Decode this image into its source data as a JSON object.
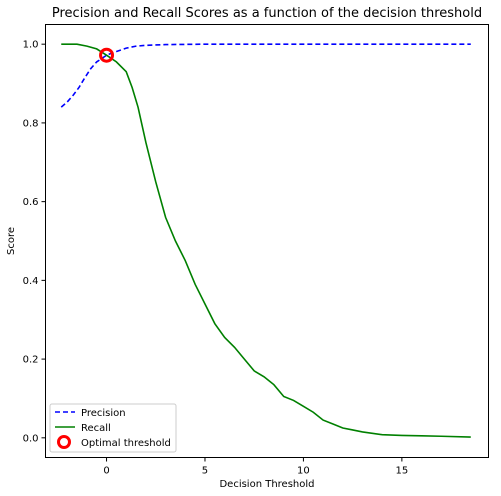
{
  "chart_data": {
    "type": "line",
    "title": "Precision and Recall Scores as a function of the decision threshold",
    "xlabel": "Decision Threshold",
    "ylabel": "Score",
    "xlim": [
      -3.1,
      19.4
    ],
    "ylim": [
      -0.05,
      1.05
    ],
    "x_ticks": [
      0,
      5,
      10,
      15
    ],
    "y_ticks": [
      0.0,
      0.2,
      0.4,
      0.6,
      0.8,
      1.0
    ],
    "x_tick_labels": [
      "0",
      "5",
      "10",
      "15"
    ],
    "y_tick_labels": [
      "0.0",
      "0.2",
      "0.4",
      "0.6",
      "0.8",
      "1.0"
    ],
    "grid": false,
    "legend_position": "lower-left",
    "series": [
      {
        "name": "Precision",
        "color": "#0000ff",
        "style": "dashed",
        "x": [
          -2.3,
          -2.0,
          -1.7,
          -1.4,
          -1.1,
          -0.8,
          -0.5,
          -0.2,
          0.0,
          0.3,
          0.6,
          1.0,
          1.5,
          2.0,
          3.0,
          5.0,
          10.0,
          15.0,
          18.5
        ],
        "y": [
          0.84,
          0.853,
          0.87,
          0.89,
          0.915,
          0.938,
          0.955,
          0.965,
          0.972,
          0.978,
          0.983,
          0.99,
          0.995,
          0.997,
          0.999,
          1.0,
          1.0,
          1.0,
          1.0
        ]
      },
      {
        "name": "Recall",
        "color": "#008000",
        "style": "solid",
        "x": [
          -2.3,
          -1.5,
          -1.0,
          -0.5,
          0.0,
          0.5,
          1.0,
          1.3,
          1.6,
          2.0,
          2.5,
          3.0,
          3.5,
          4.0,
          4.5,
          5.0,
          5.5,
          6.0,
          6.5,
          7.0,
          7.5,
          8.0,
          8.5,
          9.0,
          9.5,
          10.0,
          10.5,
          11.0,
          11.5,
          12.0,
          12.5,
          13.0,
          14.0,
          15.0,
          16.0,
          17.0,
          18.5
        ],
        "y": [
          1.0,
          1.0,
          0.995,
          0.988,
          0.972,
          0.955,
          0.93,
          0.89,
          0.84,
          0.75,
          0.65,
          0.56,
          0.5,
          0.45,
          0.39,
          0.34,
          0.29,
          0.255,
          0.23,
          0.2,
          0.17,
          0.155,
          0.135,
          0.105,
          0.095,
          0.08,
          0.065,
          0.045,
          0.035,
          0.025,
          0.02,
          0.015,
          0.008,
          0.006,
          0.005,
          0.004,
          0.002
        ]
      }
    ],
    "markers": [
      {
        "name": "Optimal threshold",
        "x": 0.0,
        "y": 0.972,
        "color": "#ff0000",
        "shape": "circle-outline"
      }
    ]
  }
}
